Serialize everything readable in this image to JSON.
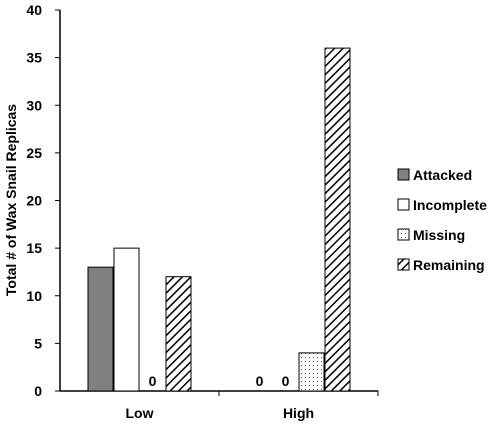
{
  "chart_data": {
    "type": "bar",
    "title": "",
    "xlabel": "",
    "ylabel": "Total # of Wax Snail Replicas",
    "ylim": [
      0,
      40
    ],
    "yticks": [
      0,
      5,
      10,
      15,
      20,
      25,
      30,
      35,
      40
    ],
    "grid": false,
    "legend_position": "right",
    "categories": [
      "Low",
      "High"
    ],
    "series": [
      {
        "name": "Attacked",
        "values": [
          13,
          0
        ],
        "fill": "solid",
        "color": "#808080"
      },
      {
        "name": "Incomplete",
        "values": [
          15,
          0
        ],
        "fill": "solid",
        "color": "#ffffff"
      },
      {
        "name": "Missing",
        "values": [
          0,
          4
        ],
        "fill": "dots",
        "color": "#ffffff"
      },
      {
        "name": "Remaining",
        "values": [
          12,
          36
        ],
        "fill": "hatch",
        "color": "#ffffff"
      }
    ],
    "zero_labels": "0"
  }
}
